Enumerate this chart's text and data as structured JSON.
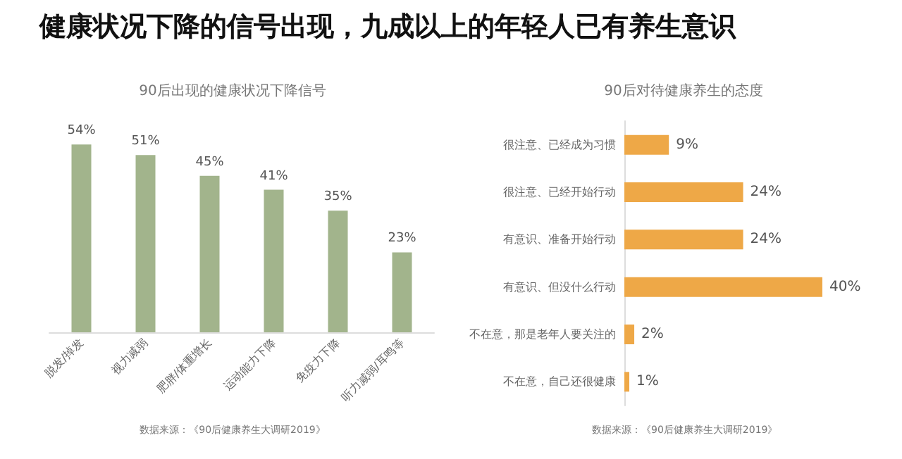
{
  "chart_data": [
    {
      "type": "bar",
      "title": "健康状况下降的信号出现，九成以上的年轻人已有养生意识",
      "subtitle": "90后出现的健康状况下降信号",
      "categories": [
        "脱发/掉发",
        "视力减弱",
        "肥胖/体重增长",
        "运动能力下降",
        "免疫力下降",
        "听力减弱/耳鸣等"
      ],
      "values": [
        54,
        51,
        45,
        41,
        35,
        23
      ],
      "value_labels": [
        "54%",
        "51%",
        "45%",
        "41%",
        "35%",
        "23%"
      ],
      "color": "#a2b48c",
      "annotations": [
        "数据来源：《90后健康养生大调研2019》"
      ]
    },
    {
      "type": "bar",
      "orientation": "horizontal",
      "title": "90后对待健康养生的态度",
      "categories": [
        "很注意、已经成为习惯",
        "很注意、已经开始行动",
        "有意识、准备开始行动",
        "有意识、但没什么行动",
        "不在意，那是老年人要关注的",
        "不在意，自己还很健康"
      ],
      "values": [
        9,
        24,
        24,
        40,
        2,
        1
      ],
      "value_labels": [
        "9%",
        "24%",
        "24%",
        "40%",
        "2%",
        "1%"
      ],
      "color": "#eea847",
      "annotations": [
        "数据来源：《90后健康养生大调研2019》"
      ]
    }
  ]
}
